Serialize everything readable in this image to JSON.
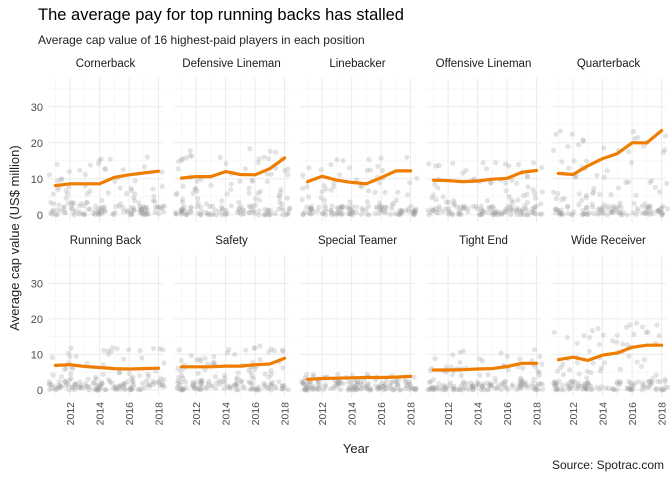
{
  "chart_data": {
    "type": "line",
    "title": "The average pay for top running backs has stalled",
    "subtitle": "Average cap value of 16 highest-paid players in each position",
    "caption": "Source: Spotrac.com",
    "xlabel": "Year",
    "ylabel": "Average cap value (US$ million)",
    "x_ticks": [
      "2012",
      "2014",
      "2016",
      "2018"
    ],
    "y_ticks": [
      "0",
      "10",
      "20",
      "30"
    ],
    "xlim": [
      2010.5,
      2018.3
    ],
    "ylim": [
      -2,
      38
    ],
    "grid": true,
    "colors": {
      "line": "#ef7d00",
      "points": "#9a9a9a",
      "grid": "#ebebeb"
    },
    "years": [
      2011,
      2012,
      2013,
      2014,
      2015,
      2016,
      2017,
      2018
    ],
    "facets": [
      {
        "name": "Cornerback",
        "values": [
          8.1,
          8.6,
          8.6,
          8.6,
          10.4,
          11.1,
          11.6,
          12.1
        ],
        "scatter_max": 17
      },
      {
        "name": "Defensive Lineman",
        "values": [
          10.2,
          10.6,
          10.6,
          12.0,
          11.2,
          11.1,
          12.8,
          15.8
        ],
        "scatter_max": 20
      },
      {
        "name": "Linebacker",
        "values": [
          9.2,
          10.7,
          9.6,
          9.0,
          8.6,
          10.3,
          12.2,
          12.2
        ],
        "scatter_max": 17
      },
      {
        "name": "Offensive Lineman",
        "values": [
          9.6,
          9.5,
          9.2,
          9.4,
          9.9,
          10.1,
          11.8,
          12.3
        ],
        "scatter_max": 16
      },
      {
        "name": "Quarterback",
        "values": [
          11.5,
          11.2,
          13.6,
          15.6,
          17.0,
          20.0,
          20.0,
          23.4
        ],
        "scatter_max": 26
      },
      {
        "name": "Running Back",
        "values": [
          6.9,
          7.1,
          6.6,
          6.3,
          6.0,
          5.9,
          6.0,
          6.1
        ],
        "scatter_max": 13
      },
      {
        "name": "Safety",
        "values": [
          6.5,
          6.5,
          6.5,
          6.7,
          6.7,
          7.1,
          7.3,
          8.9
        ],
        "scatter_max": 13
      },
      {
        "name": "Special Teamer",
        "values": [
          3.0,
          3.2,
          3.3,
          3.4,
          3.5,
          3.5,
          3.6,
          3.8
        ],
        "scatter_max": 5
      },
      {
        "name": "Tight End",
        "values": [
          5.6,
          5.6,
          5.7,
          5.9,
          6.0,
          6.6,
          7.5,
          7.5
        ],
        "scatter_max": 12
      },
      {
        "name": "Wide Receiver",
        "values": [
          8.5,
          9.2,
          8.3,
          9.8,
          10.4,
          12.0,
          12.6,
          12.6
        ],
        "scatter_max": 20
      }
    ]
  }
}
